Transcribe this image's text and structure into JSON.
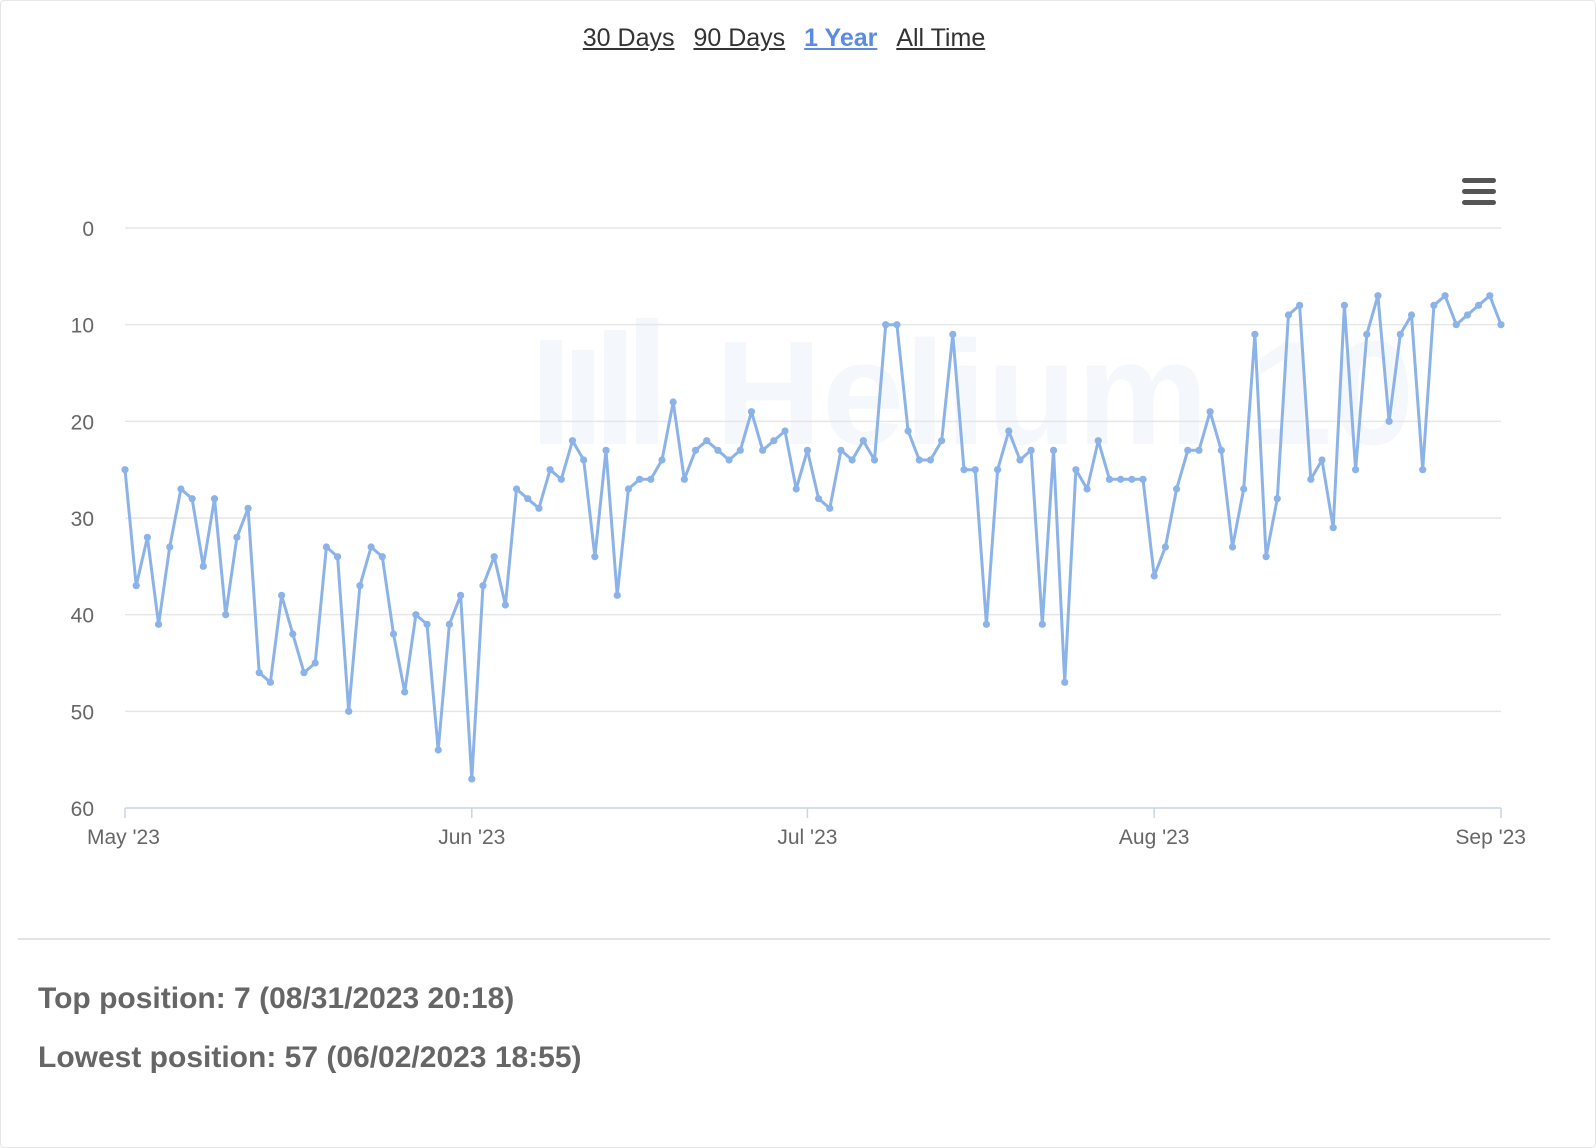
{
  "range_tabs": [
    {
      "label": "30 Days",
      "active": false
    },
    {
      "label": "90 Days",
      "active": false
    },
    {
      "label": "1 Year",
      "active": true
    },
    {
      "label": "All Time",
      "active": false
    }
  ],
  "watermark": "Helium 10",
  "chart_menu_icon": "hamburger-menu-icon",
  "colors": {
    "line": "#8bb3e8",
    "active_tab": "#5a8be0",
    "grid": "#e6e6e6",
    "text": "#666666"
  },
  "chart_data": {
    "type": "line",
    "title": "",
    "xlabel": "",
    "ylabel": "",
    "y_reversed": true,
    "ylim": [
      0,
      60
    ],
    "yticks": [
      0,
      10,
      20,
      30,
      40,
      50,
      60
    ],
    "x_range": [
      "2023-05-01",
      "2023-09-01"
    ],
    "xticks": [
      {
        "date": "2023-05-01",
        "label": "May '23"
      },
      {
        "date": "2023-06-01",
        "label": "Jun '23"
      },
      {
        "date": "2023-07-01",
        "label": "Jul '23"
      },
      {
        "date": "2023-08-01",
        "label": "Aug '23"
      },
      {
        "date": "2023-09-01",
        "label": "Sep '23"
      }
    ],
    "grid": true,
    "series": [
      {
        "points": [
          [
            "2023-05-01",
            25
          ],
          [
            "2023-05-02",
            37
          ],
          [
            "2023-05-03",
            32
          ],
          [
            "2023-05-04",
            41
          ],
          [
            "2023-05-05",
            33
          ],
          [
            "2023-05-06",
            27
          ],
          [
            "2023-05-07",
            28
          ],
          [
            "2023-05-08",
            35
          ],
          [
            "2023-05-09",
            28
          ],
          [
            "2023-05-10",
            40
          ],
          [
            "2023-05-11",
            32
          ],
          [
            "2023-05-12",
            29
          ],
          [
            "2023-05-13",
            46
          ],
          [
            "2023-05-14",
            47
          ],
          [
            "2023-05-15",
            38
          ],
          [
            "2023-05-16",
            42
          ],
          [
            "2023-05-17",
            46
          ],
          [
            "2023-05-18",
            45
          ],
          [
            "2023-05-19",
            33
          ],
          [
            "2023-05-20",
            34
          ],
          [
            "2023-05-21",
            50
          ],
          [
            "2023-05-22",
            37
          ],
          [
            "2023-05-23",
            33
          ],
          [
            "2023-05-24",
            34
          ],
          [
            "2023-05-25",
            42
          ],
          [
            "2023-05-26",
            48
          ],
          [
            "2023-05-27",
            40
          ],
          [
            "2023-05-28",
            41
          ],
          [
            "2023-05-29",
            54
          ],
          [
            "2023-05-30",
            41
          ],
          [
            "2023-05-31",
            38
          ],
          [
            "2023-06-01",
            57
          ],
          [
            "2023-06-02",
            37
          ],
          [
            "2023-06-03",
            34
          ],
          [
            "2023-06-04",
            39
          ],
          [
            "2023-06-05",
            27
          ],
          [
            "2023-06-06",
            28
          ],
          [
            "2023-06-07",
            29
          ],
          [
            "2023-06-08",
            25
          ],
          [
            "2023-06-09",
            26
          ],
          [
            "2023-06-10",
            22
          ],
          [
            "2023-06-11",
            24
          ],
          [
            "2023-06-12",
            34
          ],
          [
            "2023-06-13",
            23
          ],
          [
            "2023-06-14",
            38
          ],
          [
            "2023-06-15",
            27
          ],
          [
            "2023-06-16",
            26
          ],
          [
            "2023-06-17",
            26
          ],
          [
            "2023-06-18",
            24
          ],
          [
            "2023-06-19",
            18
          ],
          [
            "2023-06-20",
            26
          ],
          [
            "2023-06-21",
            23
          ],
          [
            "2023-06-22",
            22
          ],
          [
            "2023-06-23",
            23
          ],
          [
            "2023-06-24",
            24
          ],
          [
            "2023-06-25",
            23
          ],
          [
            "2023-06-26",
            19
          ],
          [
            "2023-06-27",
            23
          ],
          [
            "2023-06-28",
            22
          ],
          [
            "2023-06-29",
            21
          ],
          [
            "2023-06-30",
            27
          ],
          [
            "2023-07-01",
            23
          ],
          [
            "2023-07-02",
            28
          ],
          [
            "2023-07-03",
            29
          ],
          [
            "2023-07-04",
            23
          ],
          [
            "2023-07-05",
            24
          ],
          [
            "2023-07-06",
            22
          ],
          [
            "2023-07-07",
            24
          ],
          [
            "2023-07-08",
            10
          ],
          [
            "2023-07-09",
            10
          ],
          [
            "2023-07-10",
            21
          ],
          [
            "2023-07-11",
            24
          ],
          [
            "2023-07-12",
            24
          ],
          [
            "2023-07-13",
            22
          ],
          [
            "2023-07-14",
            11
          ],
          [
            "2023-07-15",
            25
          ],
          [
            "2023-07-16",
            25
          ],
          [
            "2023-07-17",
            41
          ],
          [
            "2023-07-18",
            25
          ],
          [
            "2023-07-19",
            21
          ],
          [
            "2023-07-20",
            24
          ],
          [
            "2023-07-21",
            23
          ],
          [
            "2023-07-22",
            41
          ],
          [
            "2023-07-23",
            23
          ],
          [
            "2023-07-24",
            47
          ],
          [
            "2023-07-25",
            25
          ],
          [
            "2023-07-26",
            27
          ],
          [
            "2023-07-27",
            22
          ],
          [
            "2023-07-28",
            26
          ],
          [
            "2023-07-29",
            26
          ],
          [
            "2023-07-30",
            26
          ],
          [
            "2023-07-31",
            26
          ],
          [
            "2023-08-01",
            36
          ],
          [
            "2023-08-02",
            33
          ],
          [
            "2023-08-03",
            27
          ],
          [
            "2023-08-04",
            23
          ],
          [
            "2023-08-05",
            23
          ],
          [
            "2023-08-06",
            19
          ],
          [
            "2023-08-07",
            23
          ],
          [
            "2023-08-08",
            33
          ],
          [
            "2023-08-09",
            27
          ],
          [
            "2023-08-10",
            11
          ],
          [
            "2023-08-11",
            34
          ],
          [
            "2023-08-12",
            28
          ],
          [
            "2023-08-13",
            9
          ],
          [
            "2023-08-14",
            8
          ],
          [
            "2023-08-15",
            26
          ],
          [
            "2023-08-16",
            24
          ],
          [
            "2023-08-17",
            31
          ],
          [
            "2023-08-18",
            8
          ],
          [
            "2023-08-19",
            25
          ],
          [
            "2023-08-20",
            11
          ],
          [
            "2023-08-21",
            7
          ],
          [
            "2023-08-22",
            20
          ],
          [
            "2023-08-23",
            11
          ],
          [
            "2023-08-24",
            9
          ],
          [
            "2023-08-25",
            25
          ],
          [
            "2023-08-26",
            8
          ],
          [
            "2023-08-27",
            7
          ],
          [
            "2023-08-28",
            10
          ],
          [
            "2023-08-29",
            9
          ],
          [
            "2023-08-30",
            8
          ],
          [
            "2023-08-31",
            7
          ],
          [
            "2023-09-01",
            10
          ]
        ]
      }
    ]
  },
  "stats": {
    "top_position": "Top position: 7 (08/31/2023 20:18)",
    "lowest_position": "Lowest position: 57 (06/02/2023 18:55)"
  }
}
